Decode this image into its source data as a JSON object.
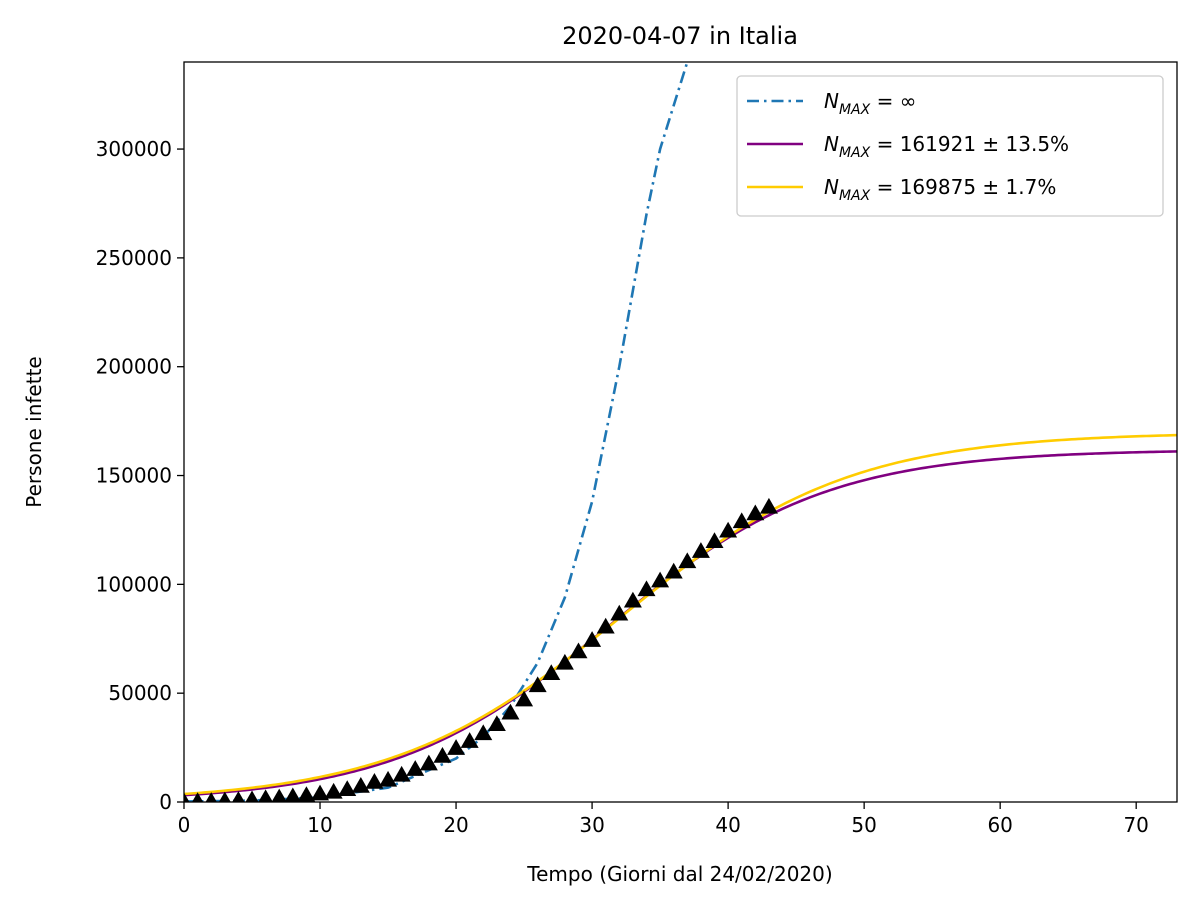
{
  "chart_data": {
    "type": "line",
    "title": "2020-04-07 in Italia",
    "xlabel": "Tempo (Giorni dal 24/02/2020)",
    "ylabel": "Persone infette",
    "xlim": [
      0,
      73
    ],
    "ylim": [
      0,
      340000
    ],
    "xticks": [
      0,
      10,
      20,
      30,
      40,
      50,
      60,
      70
    ],
    "yticks": [
      0,
      50000,
      100000,
      150000,
      200000,
      250000,
      300000
    ],
    "legend_position": "top-right",
    "series": [
      {
        "name": "N_MAX = ∞",
        "legend": {
          "base": "N",
          "sub": "MAX",
          "rest": " = ∞"
        },
        "style": "dashdot",
        "color": "#1f77b4",
        "model": "exponential",
        "x": [
          0,
          5,
          10,
          15,
          20,
          22,
          24,
          26,
          28,
          30,
          32,
          34,
          35,
          36,
          37
        ],
        "y": [
          229,
          650,
          2100,
          6600,
          20000,
          30000,
          44000,
          64000,
          94000,
          138000,
          200000,
          270000,
          300000,
          320000,
          340000
        ]
      },
      {
        "name": "N_MAX = 161921 ± 13.5%",
        "legend": {
          "base": "N",
          "sub": "MAX",
          "rest": " = 161921 ± 13.5%"
        },
        "style": "solid",
        "color": "#800080",
        "model": "logistic",
        "params": {
          "K": 161921,
          "r": 0.1255,
          "t0": 31.26
        },
        "x_range": [
          0,
          73
        ]
      },
      {
        "name": "N_MAX = 169875 ± 1.7%",
        "legend": {
          "base": "N",
          "sub": "MAX",
          "rest": " = 169875 ± 1.7%"
        },
        "style": "solid",
        "color": "#ffcc00",
        "model": "logistic",
        "params": {
          "K": 169875,
          "r": 0.1187,
          "t0": 32.1
        },
        "x_range": [
          0,
          73
        ]
      }
    ],
    "observed": {
      "marker": "triangle",
      "color": "#000000",
      "x": [
        0,
        1,
        2,
        3,
        4,
        5,
        6,
        7,
        8,
        9,
        10,
        11,
        12,
        13,
        14,
        15,
        16,
        17,
        18,
        19,
        20,
        21,
        22,
        23,
        24,
        25,
        26,
        27,
        28,
        29,
        30,
        31,
        32,
        33,
        34,
        35,
        36,
        37,
        38,
        39,
        40,
        41,
        42,
        43
      ],
      "y": [
        229,
        322,
        400,
        650,
        888,
        1128,
        1694,
        2036,
        2502,
        3089,
        3858,
        4636,
        5883,
        7375,
        9172,
        10149,
        12462,
        15113,
        17660,
        21157,
        24747,
        27980,
        31506,
        35713,
        41035,
        47021,
        53578,
        59138,
        63927,
        69176,
        74386,
        80539,
        86498,
        92472,
        97689,
        101739,
        105792,
        110574,
        115242,
        119827,
        124632,
        128948,
        132547,
        135586
      ]
    }
  }
}
